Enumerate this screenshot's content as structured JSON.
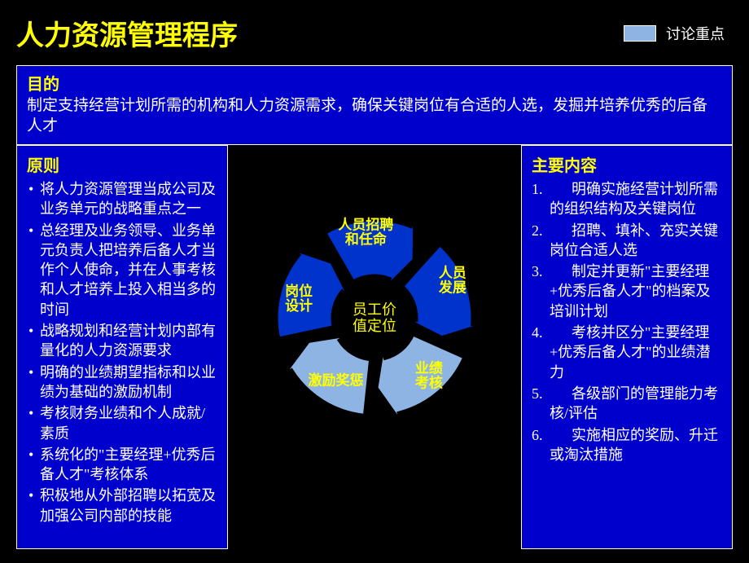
{
  "title": "人力资源管理程序",
  "legend": {
    "box_color": "#8db4e2",
    "label": "讨论重点"
  },
  "purpose": {
    "header": "目的",
    "text": "制定支持经营计划所需的机构和人力资源需求，确保关键岗位有合适的人选，发掘并培养优秀的后备人才"
  },
  "principles": {
    "header": "原则",
    "items": [
      "将人力资源管理当成公司及业务单元的战略重点之一",
      "总经理及业务领导、业务单元负责人把培养后备人才当作个人使命，并在人事考核和人才培养上投入相当多的时间",
      "战略规划和经营计划内部有量化的人力资源要求",
      "明确的业绩期望指标和以业绩为基础的激励机制",
      "考核财务业绩和个人成就/素质",
      "系统化的\"主要经理+优秀后备人才\"考核体系",
      "积极地从外部招聘以拓宽及加强公司内部的技能"
    ]
  },
  "main_content": {
    "header": "主要内容",
    "items": [
      "明确实施经营计划所需的组织结构及关键岗位",
      "招聘、填补、充实关键岗位合适人选",
      "制定并更新\"主要经理+优秀后备人才\"的档案及培训计划",
      "考核并区分\"主要经理+优秀后备人才\"的业绩潜力",
      "各级部门的管理能力考核/评估",
      "实施相应的奖励、升迁或淘汰措施"
    ]
  },
  "cycle": {
    "center": [
      "员工价",
      "值定位"
    ],
    "segments": [
      {
        "label_lines": [
          "岗位",
          "设计"
        ],
        "color": "#0033cc",
        "highlight": false,
        "angle_start": 162,
        "label_r": 95
      },
      {
        "label_lines": [
          "人员招聘",
          "和任命"
        ],
        "color": "#0033cc",
        "highlight": false,
        "angle_start": 234,
        "label_r": 102
      },
      {
        "label_lines": [
          "人员",
          "发展"
        ],
        "color": "#0033cc",
        "highlight": false,
        "angle_start": 306,
        "label_r": 105
      },
      {
        "label_lines": [
          "业绩",
          "考核"
        ],
        "color": "#8db4e2",
        "highlight": true,
        "angle_start": 18,
        "label_r": 100
      },
      {
        "label_lines": [
          "激励奖惩"
        ],
        "color": "#8db4e2",
        "highlight": true,
        "angle_start": 90,
        "label_r": 95
      }
    ],
    "inner_radius": 52,
    "outer_radius": 120,
    "arrow_head_extent": 148,
    "stroke": "#000000",
    "center_fill": "#000000"
  },
  "colors": {
    "background": "#000000",
    "box_fill": "#0000cc",
    "box_border": "#ffffff",
    "title_color": "#ffff00",
    "header_color": "#ffff00",
    "text_color": "#ffffff"
  }
}
